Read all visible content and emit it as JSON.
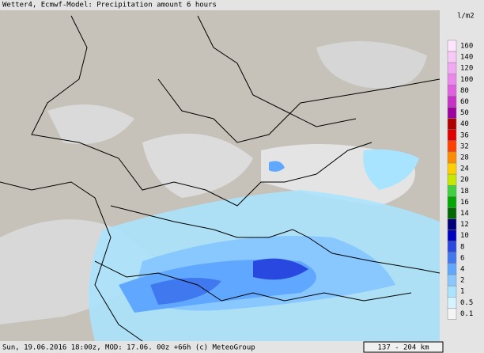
{
  "header": {
    "title": "Wetter4, Ecmwf-Model: Precipitation amount 6 hours"
  },
  "legend": {
    "unit": "l/m2",
    "items": [
      {
        "label": 160,
        "color": "#fde6fd"
      },
      {
        "label": 140,
        "color": "#f8c8f8"
      },
      {
        "label": 120,
        "color": "#f2a8f2"
      },
      {
        "label": 100,
        "color": "#ec88ec"
      },
      {
        "label": 80,
        "color": "#e060e0"
      },
      {
        "label": 60,
        "color": "#c830c8"
      },
      {
        "label": 50,
        "color": "#a000a0"
      },
      {
        "label": 40,
        "color": "#b00000"
      },
      {
        "label": 36,
        "color": "#e00000"
      },
      {
        "label": 32,
        "color": "#ff4000"
      },
      {
        "label": 28,
        "color": "#ff8c00"
      },
      {
        "label": 24,
        "color": "#ffd000"
      },
      {
        "label": 20,
        "color": "#c8e800"
      },
      {
        "label": 18,
        "color": "#40d040"
      },
      {
        "label": 16,
        "color": "#00a800"
      },
      {
        "label": 14,
        "color": "#006800"
      },
      {
        "label": 12,
        "color": "#000078"
      },
      {
        "label": 10,
        "color": "#0000c0"
      },
      {
        "label": 8,
        "color": "#2848e0"
      },
      {
        "label": 6,
        "color": "#4078f0"
      },
      {
        "label": 4,
        "color": "#60a8ff"
      },
      {
        "label": 2,
        "color": "#88c8ff"
      },
      {
        "label": 1,
        "color": "#a8e4ff"
      },
      {
        "label": 0.5,
        "color": "#d4f4ff"
      },
      {
        "label": 0.1,
        "color": "#f4f4f4"
      }
    ]
  },
  "footer": {
    "info": "Sun, 19.06.2016 18:00z, MOD: 17.06. 00z +66h (c) MeteoGroup",
    "scale": "137 - 204 km"
  }
}
